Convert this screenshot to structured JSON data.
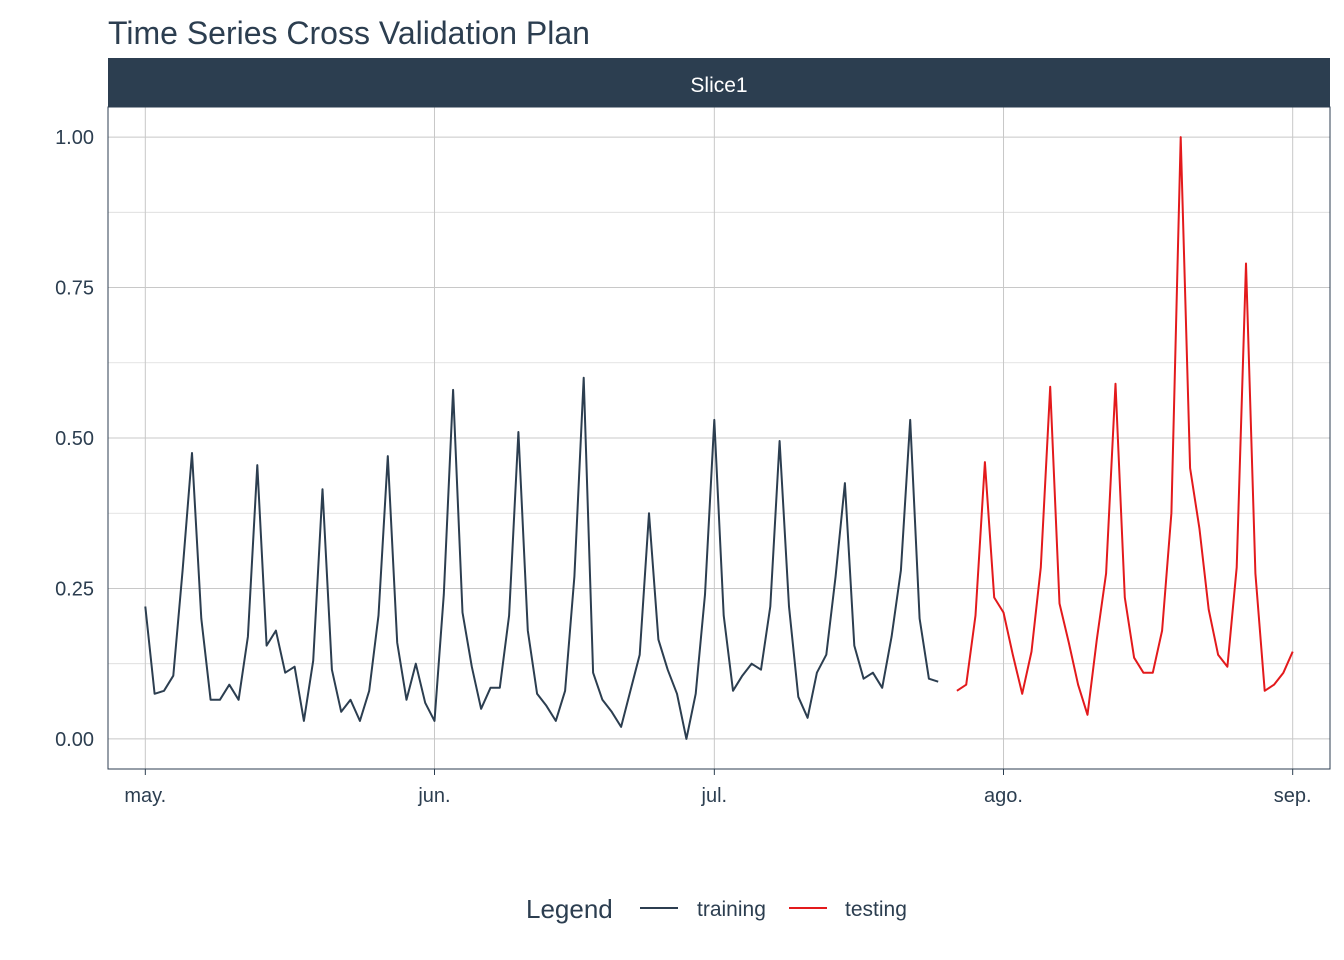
{
  "chart_data": {
    "type": "line",
    "title": "Time Series Cross Validation Plan",
    "facet_label": "Slice1",
    "xlabel": "",
    "ylabel": "",
    "x_ticks": [
      {
        "date": "2023-05-01",
        "label": "may."
      },
      {
        "date": "2023-06-01",
        "label": "jun."
      },
      {
        "date": "2023-07-01",
        "label": "jul."
      },
      {
        "date": "2023-08-01",
        "label": "ago."
      },
      {
        "date": "2023-09-01",
        "label": "sep."
      }
    ],
    "xlim": [
      "2023-04-27",
      "2023-09-05"
    ],
    "y_ticks": [
      0.0,
      0.25,
      0.5,
      0.75,
      1.0
    ],
    "y_tick_labels": [
      "0.00",
      "0.25",
      "0.50",
      "0.75",
      "1.00"
    ],
    "ylim": [
      -0.05,
      1.05
    ],
    "grid": true,
    "legend": {
      "title": "Legend",
      "position": "bottom"
    },
    "series": [
      {
        "name": "training",
        "color": "#2c3e50",
        "start_date": "2023-05-01",
        "values": [
          0.22,
          0.075,
          0.08,
          0.105,
          0.28,
          0.475,
          0.2,
          0.065,
          0.065,
          0.09,
          0.065,
          0.17,
          0.455,
          0.155,
          0.18,
          0.11,
          0.12,
          0.03,
          0.13,
          0.415,
          0.115,
          0.045,
          0.065,
          0.03,
          0.08,
          0.205,
          0.47,
          0.16,
          0.065,
          0.125,
          0.06,
          0.03,
          0.24,
          0.58,
          0.21,
          0.12,
          0.05,
          0.085,
          0.085,
          0.205,
          0.51,
          0.18,
          0.075,
          0.055,
          0.03,
          0.08,
          0.27,
          0.6,
          0.11,
          0.065,
          0.045,
          0.02,
          0.08,
          0.14,
          0.375,
          0.165,
          0.115,
          0.075,
          0.0,
          0.075,
          0.24,
          0.53,
          0.205,
          0.08,
          0.105,
          0.125,
          0.115,
          0.22,
          0.495,
          0.22,
          0.07,
          0.035,
          0.11,
          0.14,
          0.27,
          0.425,
          0.155,
          0.1,
          0.11,
          0.085,
          0.17,
          0.28,
          0.53,
          0.2,
          0.1,
          0.095
        ]
      },
      {
        "name": "testing",
        "color": "#e31a1c",
        "start_date": "2023-07-27",
        "values": [
          0.08,
          0.09,
          0.205,
          0.46,
          0.235,
          0.21,
          0.14,
          0.075,
          0.145,
          0.285,
          0.585,
          0.225,
          0.16,
          0.09,
          0.04,
          0.165,
          0.275,
          0.59,
          0.235,
          0.135,
          0.11,
          0.11,
          0.18,
          0.375,
          1.0,
          0.45,
          0.35,
          0.215,
          0.14,
          0.12,
          0.285,
          0.79,
          0.275,
          0.08,
          0.09,
          0.11,
          0.145
        ]
      }
    ]
  },
  "colors": {
    "strip_background": "#2c3e50",
    "panel_border": "#2c3e50",
    "text": "#2c3e50"
  }
}
